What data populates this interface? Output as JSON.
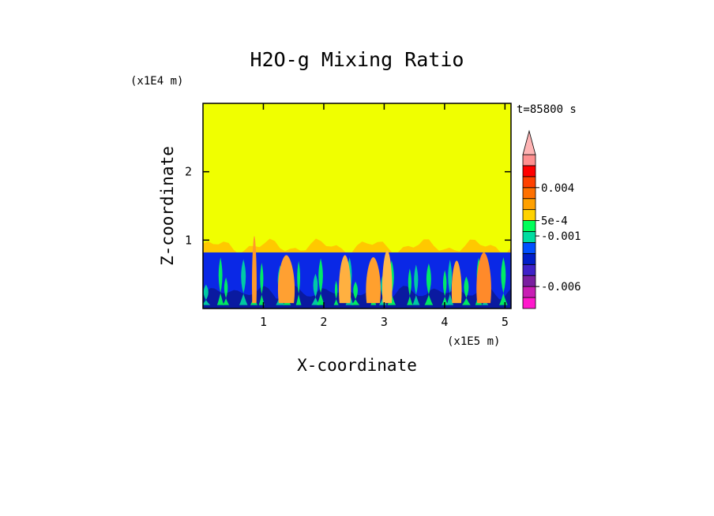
{
  "chart_data": {
    "type": "heatmap",
    "title": "H2O-g Mixing Ratio",
    "xlabel": "X-coordinate",
    "ylabel": "Z-coordinate",
    "x_units": "(x1E5 m)",
    "y_units": "(x1E4 m)",
    "time_label": "t=85800 s",
    "xlim": [
      0,
      5.1
    ],
    "ylim": [
      0,
      3.0
    ],
    "x_ticks": [
      {
        "value": 1,
        "label": "1"
      },
      {
        "value": 2,
        "label": "2"
      },
      {
        "value": 3,
        "label": "3"
      },
      {
        "value": 4,
        "label": "4"
      },
      {
        "value": 5,
        "label": "5"
      }
    ],
    "y_ticks": [
      {
        "value": 1,
        "label": "1"
      },
      {
        "value": 2,
        "label": "2"
      }
    ],
    "colorbar": {
      "levels": [
        "#ff18cc",
        "#c81eb4",
        "#7a1fa0",
        "#3e22c8",
        "#001ec8",
        "#0050ff",
        "#00dca0",
        "#00ff5a",
        "#ffd200",
        "#ffa000",
        "#ff7000",
        "#ff4000",
        "#ff0000",
        "#ff9090"
      ],
      "extend_max_color": "#ffb4b4",
      "labels": [
        {
          "text": "0.004",
          "level": 11.0
        },
        {
          "text": "5e-4",
          "level": 8.0
        },
        {
          "text": "-0.001",
          "level": 6.6
        },
        {
          "text": "-0.006",
          "level": 2.0
        }
      ]
    },
    "field": {
      "upper_region_color": "#f0ff00",
      "lower_region_top": 0.82,
      "mixing_zone_top": 1.05,
      "background_low_color": "#0a28e6",
      "deep_color": "#0a1aa0",
      "plumes": [
        {
          "x": 0.85,
          "top": 1.06,
          "width": 0.07,
          "color": "#ff9a2a"
        },
        {
          "x": 1.38,
          "top": 0.78,
          "width": 0.25,
          "color": "#ffa032"
        },
        {
          "x": 2.35,
          "top": 0.78,
          "width": 0.18,
          "color": "#ffb040"
        },
        {
          "x": 2.82,
          "top": 0.75,
          "width": 0.22,
          "color": "#ffa02e"
        },
        {
          "x": 3.05,
          "top": 0.85,
          "width": 0.15,
          "color": "#ffb84a"
        },
        {
          "x": 4.2,
          "top": 0.7,
          "width": 0.15,
          "color": "#ffa834"
        },
        {
          "x": 4.65,
          "top": 0.82,
          "width": 0.22,
          "color": "#ff8a2a"
        }
      ]
    }
  }
}
